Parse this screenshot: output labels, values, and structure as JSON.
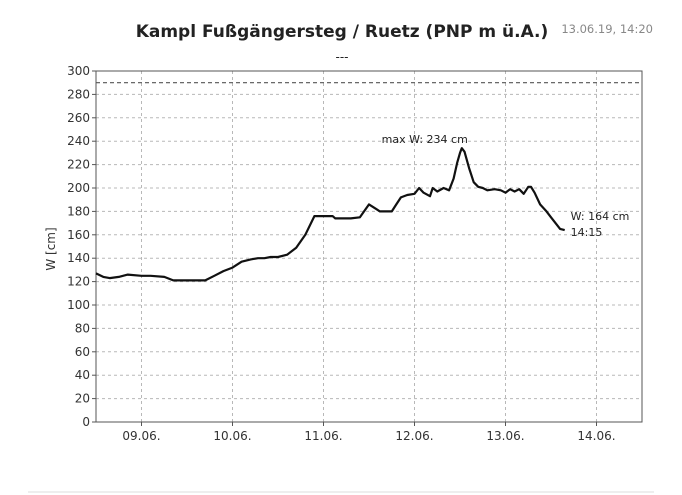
{
  "chart_data": {
    "type": "line",
    "title": "Kampl Fußgängersteg / Ruetz (PNP  m ü.A.)",
    "subtitle": "---",
    "timestamp": "13.06.19, 14:20",
    "ylabel": "W [cm]",
    "xlabel": "",
    "ylim": [
      0,
      300
    ],
    "yticks": [
      "0",
      "20",
      "40",
      "60",
      "80",
      "100",
      "120",
      "140",
      "160",
      "180",
      "200",
      "220",
      "240",
      "260",
      "280",
      "300"
    ],
    "xlim": [
      0,
      6.0
    ],
    "xticks": [
      {
        "label": "09.06.",
        "x": 0.5
      },
      {
        "label": "10.06.",
        "x": 1.5
      },
      {
        "label": "11.06.",
        "x": 2.5
      },
      {
        "label": "12.06.",
        "x": 3.5
      },
      {
        "label": "13.06.",
        "x": 4.5
      },
      {
        "label": "14.06.",
        "x": 5.5
      }
    ],
    "grid": true,
    "reference_line": {
      "y": 290,
      "style": "dashed"
    },
    "series": [
      {
        "x": [
          0,
          0.08,
          0.15,
          0.25,
          0.35,
          0.5,
          0.6,
          0.75,
          0.85,
          0.95,
          1.05,
          1.2,
          1.3,
          1.4,
          1.5,
          1.6,
          1.7,
          1.78,
          1.85,
          1.92,
          2.0,
          2.1,
          2.2,
          2.3,
          2.4,
          2.5,
          2.6,
          2.63,
          2.7,
          2.75,
          2.8,
          2.9,
          3.0,
          3.08,
          3.12,
          3.18,
          3.25,
          3.3,
          3.35,
          3.42,
          3.5,
          3.55,
          3.6,
          3.67,
          3.7,
          3.75,
          3.82,
          3.88,
          3.93,
          3.97,
          4.0,
          4.02,
          4.05,
          4.1,
          4.15,
          4.2,
          4.25,
          4.3,
          4.38,
          4.45,
          4.5,
          4.55,
          4.6,
          4.65,
          4.7,
          4.75,
          4.78,
          4.82,
          4.88,
          4.95,
          5.0,
          5.05,
          5.1,
          5.15
        ],
        "y": [
          127,
          124,
          123,
          124,
          126,
          125,
          125,
          124,
          121,
          121,
          121,
          121,
          125,
          129,
          132,
          137,
          139,
          140,
          140,
          141,
          141,
          143,
          149,
          160,
          176,
          176,
          176,
          174,
          174,
          174,
          174,
          175,
          186,
          182,
          180,
          180,
          180,
          186,
          192,
          194,
          195,
          200,
          196,
          193,
          200,
          197,
          200,
          198,
          208,
          222,
          230,
          234,
          231,
          217,
          205,
          201,
          200,
          198,
          199,
          198,
          196,
          199,
          197,
          199,
          195,
          201,
          201,
          196,
          186,
          180,
          175,
          170,
          165,
          164
        ]
      }
    ],
    "annotations": [
      {
        "text": "max W: 234 cm",
        "x": 4.02,
        "y": 234
      },
      {
        "text": "W: 164 cm",
        "x": 5.15,
        "y": 164
      },
      {
        "text": "14:15",
        "x": 5.15,
        "y": 164
      }
    ]
  }
}
